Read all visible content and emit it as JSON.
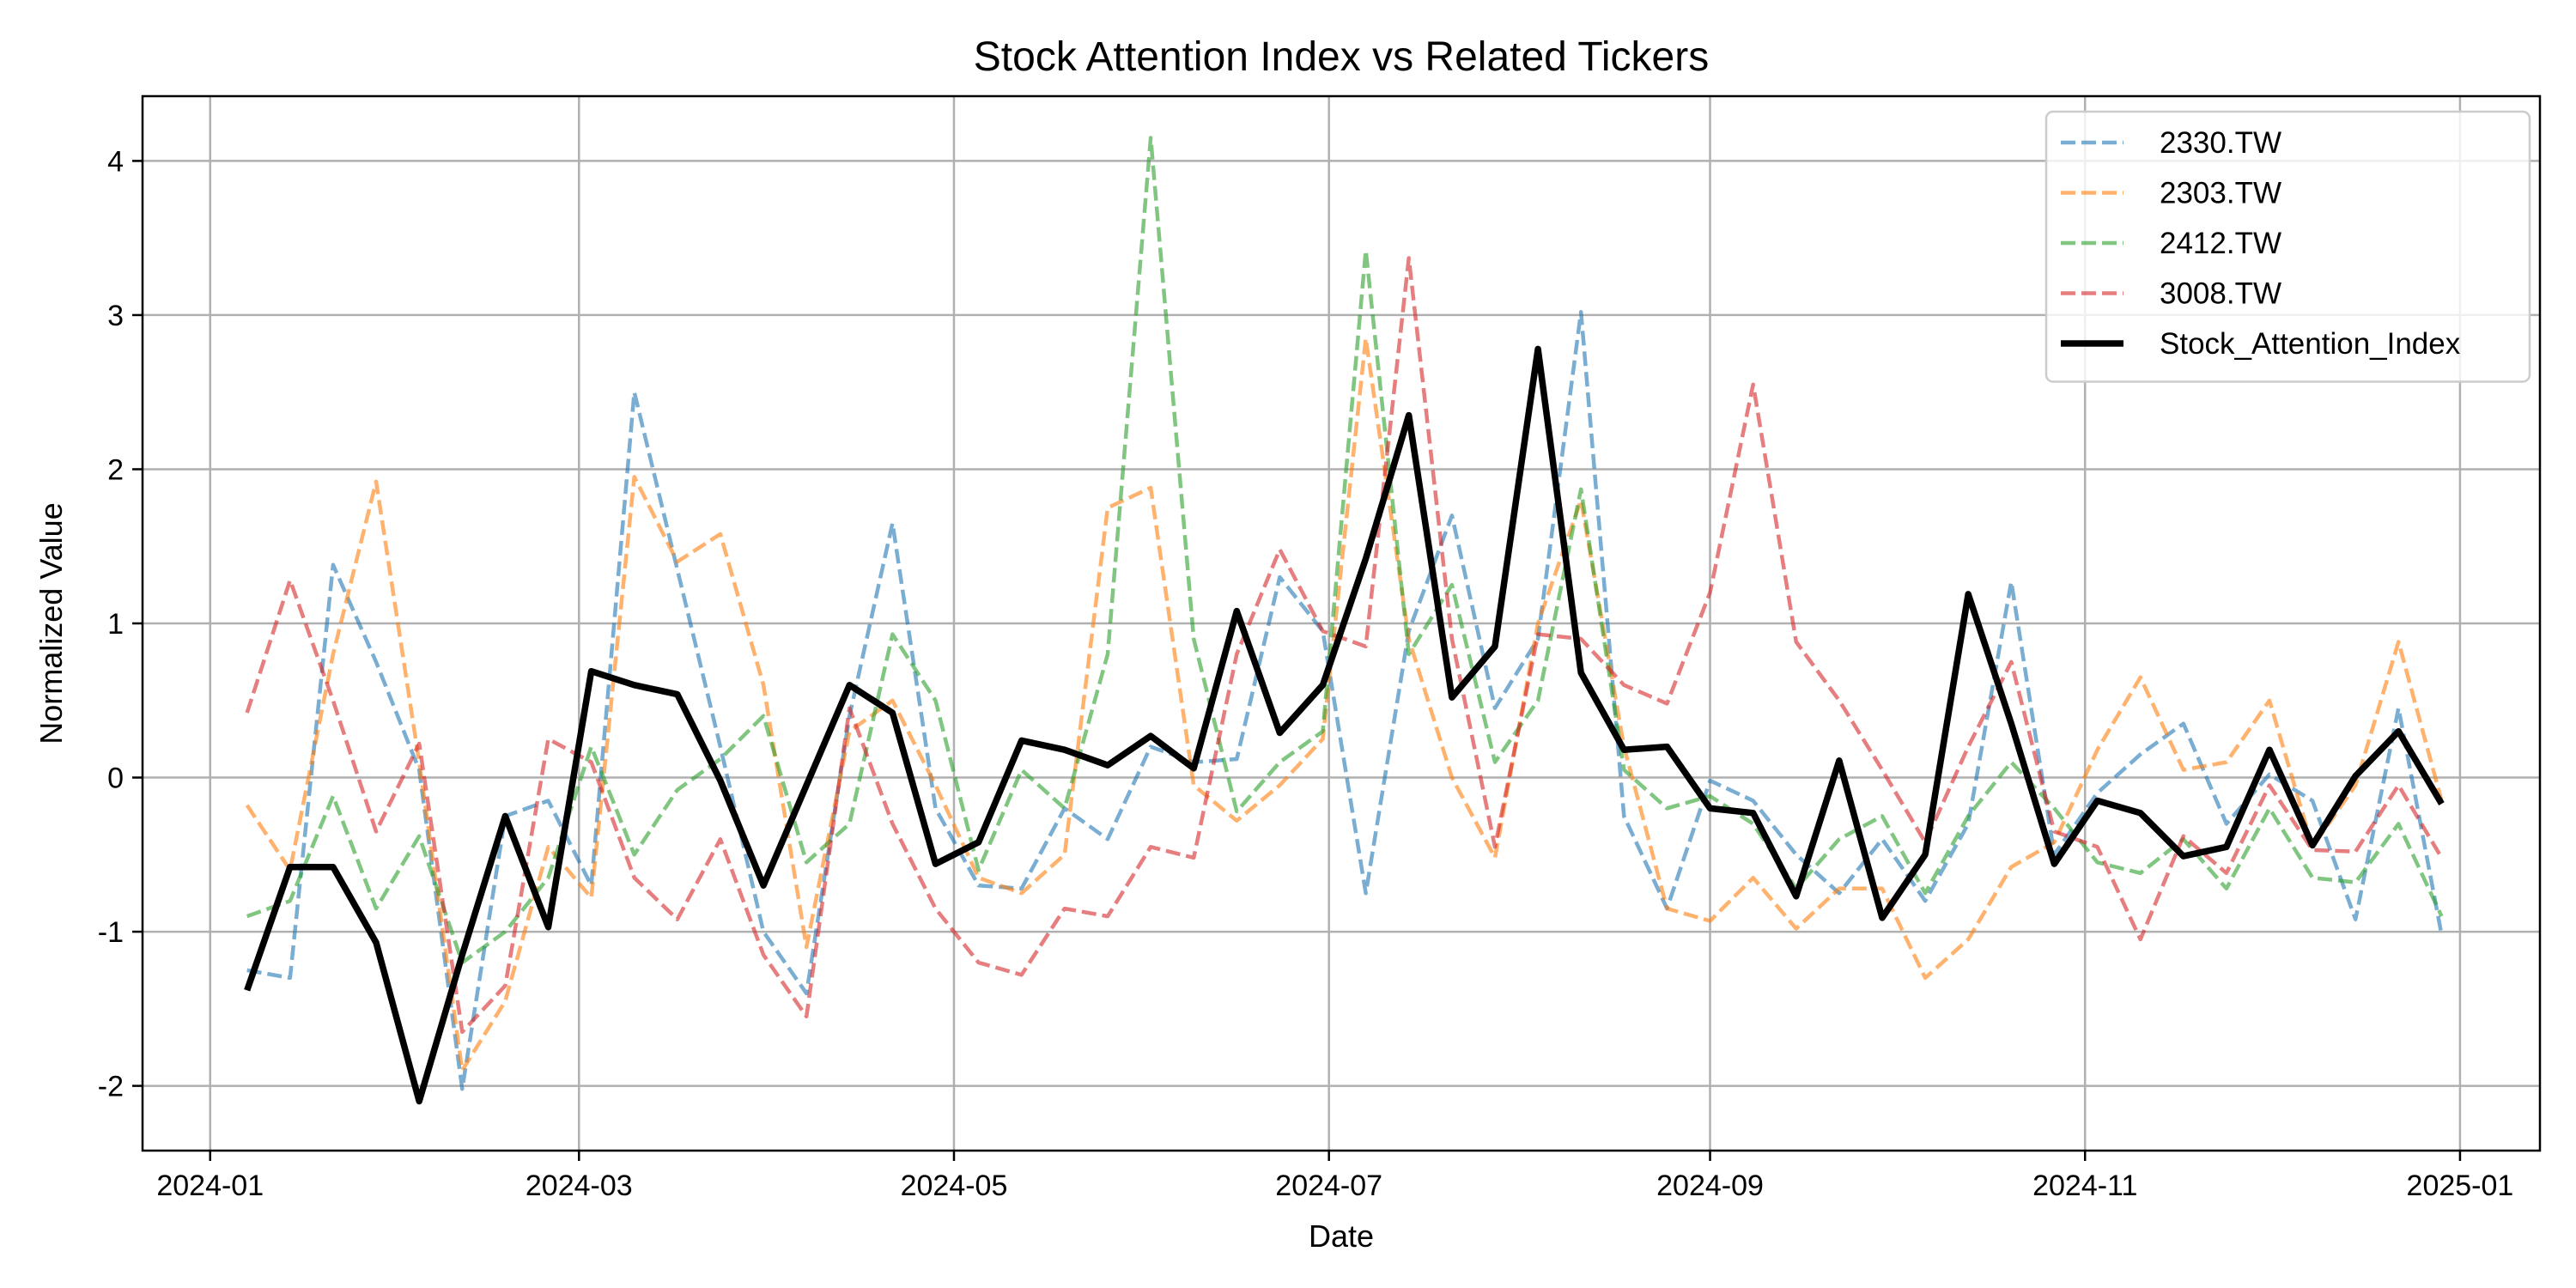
{
  "chart_data": {
    "type": "line",
    "title": "Stock Attention Index vs Related Tickers",
    "xlabel": "Date",
    "ylabel": "Normalized Value",
    "xlim": [
      "2023-12-21",
      "2025-01-14"
    ],
    "ylim": [
      -2.42,
      4.42
    ],
    "grid": true,
    "legend_position": "top-right",
    "x_ticks": [
      "2024-01-01",
      "2024-03-01",
      "2024-05-01",
      "2024-07-01",
      "2024-09-01",
      "2024-11-01",
      "2025-01-01"
    ],
    "x_tick_labels": [
      "2024-01",
      "2024-03",
      "2024-05",
      "2024-07",
      "2024-09",
      "2024-11",
      "2025-01"
    ],
    "y_ticks": [
      -2,
      -1,
      0,
      1,
      2,
      3,
      4
    ],
    "y_tick_labels": [
      "-2",
      "-1",
      "0",
      "1",
      "2",
      "3",
      "4"
    ],
    "x": [
      "2024-01-07",
      "2024-01-14",
      "2024-01-21",
      "2024-01-28",
      "2024-02-04",
      "2024-02-11",
      "2024-02-18",
      "2024-02-25",
      "2024-03-03",
      "2024-03-10",
      "2024-03-17",
      "2024-03-24",
      "2024-03-31",
      "2024-04-07",
      "2024-04-14",
      "2024-04-21",
      "2024-04-28",
      "2024-05-05",
      "2024-05-12",
      "2024-05-19",
      "2024-05-26",
      "2024-06-02",
      "2024-06-09",
      "2024-06-16",
      "2024-06-23",
      "2024-06-30",
      "2024-07-07",
      "2024-07-14",
      "2024-07-21",
      "2024-07-28",
      "2024-08-04",
      "2024-08-11",
      "2024-08-18",
      "2024-08-25",
      "2024-09-01",
      "2024-09-08",
      "2024-09-15",
      "2024-09-22",
      "2024-09-29",
      "2024-10-06",
      "2024-10-13",
      "2024-10-20",
      "2024-10-27",
      "2024-11-03",
      "2024-11-10",
      "2024-11-17",
      "2024-11-24",
      "2024-12-01",
      "2024-12-08",
      "2024-12-15",
      "2024-12-22",
      "2024-12-29"
    ],
    "series": [
      {
        "name": "2330.TW",
        "color": "#1f77b4",
        "style": "dashed",
        "values": [
          -1.25,
          -1.3,
          1.38,
          0.75,
          0.05,
          -2.02,
          -0.25,
          -0.15,
          -0.7,
          2.5,
          1.35,
          0.2,
          -1.0,
          -1.4,
          0.4,
          1.65,
          -0.2,
          -0.7,
          -0.72,
          -0.2,
          -0.4,
          0.2,
          0.1,
          0.12,
          1.3,
          0.95,
          -0.75,
          0.95,
          1.7,
          0.45,
          0.9,
          3.02,
          -0.25,
          -0.85,
          -0.02,
          -0.15,
          -0.5,
          -0.75,
          -0.4,
          -0.8,
          -0.3,
          1.27,
          -0.5,
          -0.1,
          0.15,
          0.35,
          -0.3,
          0.02,
          -0.15,
          -0.92,
          0.45,
          -1.02
        ]
      },
      {
        "name": "2303.TW",
        "color": "#ff7f0e",
        "style": "dashed",
        "values": [
          -0.18,
          -0.6,
          0.8,
          1.92,
          0.1,
          -1.9,
          -1.45,
          -0.45,
          -0.78,
          1.95,
          1.4,
          1.58,
          0.6,
          -1.1,
          0.3,
          0.5,
          -0.05,
          -0.65,
          -0.75,
          -0.5,
          1.75,
          1.88,
          -0.05,
          -0.28,
          -0.05,
          0.25,
          2.85,
          0.9,
          0.0,
          -0.52,
          1.0,
          1.8,
          0.2,
          -0.85,
          -0.93,
          -0.65,
          -0.98,
          -0.72,
          -0.72,
          -1.3,
          -1.05,
          -0.58,
          -0.42,
          0.18,
          0.65,
          0.05,
          0.1,
          0.5,
          -0.45,
          -0.05,
          0.88,
          -0.15
        ]
      },
      {
        "name": "2412.TW",
        "color": "#2ca02c",
        "style": "dashed",
        "values": [
          -0.9,
          -0.8,
          -0.12,
          -0.85,
          -0.38,
          -1.2,
          -1.0,
          -0.65,
          0.2,
          -0.5,
          -0.08,
          0.12,
          0.4,
          -0.55,
          -0.3,
          0.93,
          0.5,
          -0.6,
          0.05,
          -0.2,
          0.8,
          4.15,
          0.9,
          -0.22,
          0.1,
          0.3,
          3.42,
          0.8,
          1.25,
          0.1,
          0.5,
          1.87,
          0.05,
          -0.2,
          -0.12,
          -0.3,
          -0.72,
          -0.4,
          -0.25,
          -0.75,
          -0.25,
          0.1,
          -0.2,
          -0.55,
          -0.62,
          -0.4,
          -0.72,
          -0.2,
          -0.65,
          -0.68,
          -0.3,
          -0.9
        ]
      },
      {
        "name": "3008.TW",
        "color": "#d62728",
        "style": "dashed",
        "values": [
          0.42,
          1.28,
          0.5,
          -0.35,
          0.22,
          -1.65,
          -1.35,
          0.25,
          0.1,
          -0.65,
          -0.92,
          -0.4,
          -1.15,
          -1.55,
          0.45,
          -0.3,
          -0.85,
          -1.2,
          -1.28,
          -0.85,
          -0.9,
          -0.45,
          -0.52,
          0.8,
          1.48,
          0.95,
          0.85,
          3.37,
          0.9,
          -0.45,
          0.93,
          0.9,
          0.6,
          0.48,
          1.2,
          2.55,
          0.88,
          0.5,
          0.05,
          -0.42,
          0.2,
          0.75,
          -0.35,
          -0.45,
          -1.05,
          -0.38,
          -0.62,
          -0.05,
          -0.47,
          -0.48,
          -0.05,
          -0.52
        ]
      },
      {
        "name": "Stock_Attention_Index",
        "color": "#000000",
        "style": "solid",
        "values": [
          -1.38,
          -0.58,
          -0.58,
          -1.07,
          -2.1,
          -1.15,
          -0.25,
          -0.97,
          0.69,
          0.6,
          0.54,
          -0.02,
          -0.7,
          -0.05,
          0.6,
          0.42,
          -0.56,
          -0.42,
          0.24,
          0.18,
          0.08,
          0.27,
          0.06,
          1.08,
          0.29,
          0.6,
          1.42,
          2.35,
          0.52,
          0.85,
          2.78,
          0.68,
          0.18,
          0.2,
          -0.2,
          -0.23,
          -0.77,
          0.11,
          -0.91,
          -0.5,
          1.19,
          0.35,
          -0.56,
          -0.15,
          -0.23,
          -0.51,
          -0.45,
          0.18,
          -0.44,
          0.01,
          0.3,
          -0.17
        ]
      }
    ]
  }
}
